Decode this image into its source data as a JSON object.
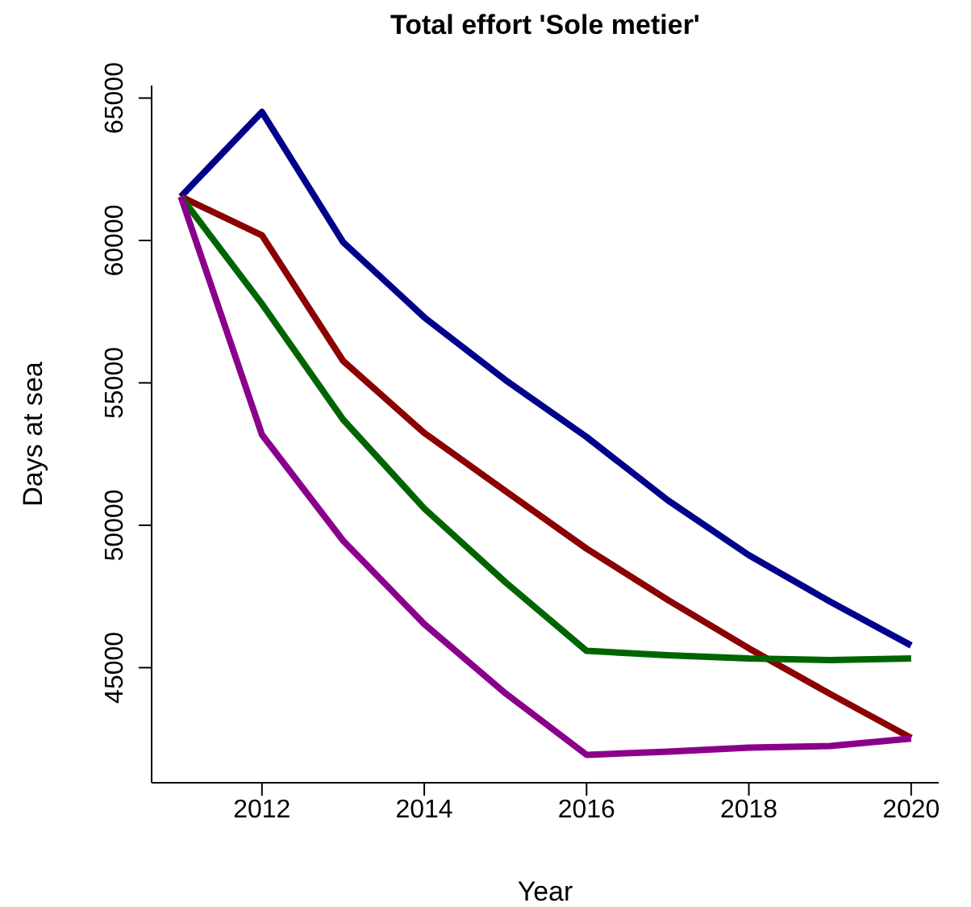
{
  "chart_data": {
    "type": "line",
    "title": "Total effort 'Sole metier'",
    "xlabel": "Year",
    "ylabel": "Days at sea",
    "x": [
      2011,
      2012,
      2013,
      2014,
      2015,
      2016,
      2017,
      2018,
      2019,
      2020
    ],
    "series": [
      {
        "color": "#00008b",
        "values": [
          61540,
          64510,
          59940,
          57300,
          55100,
          53100,
          50880,
          48950,
          47320,
          45780
        ]
      },
      {
        "color": "#8b0000",
        "values": [
          61540,
          60180,
          55770,
          53240,
          51200,
          49180,
          47380,
          45680,
          44080,
          42530
        ]
      },
      {
        "color": "#006400",
        "values": [
          61540,
          57770,
          53710,
          50590,
          48000,
          45590,
          45440,
          45320,
          45270,
          45320
        ]
      },
      {
        "color": "#8b008b",
        "values": [
          61540,
          53180,
          49460,
          46530,
          44100,
          41940,
          42050,
          42190,
          42250,
          42510
        ]
      }
    ],
    "xlim": [
      2010.64,
      2020.34
    ],
    "ylim": [
      40960,
      65440
    ],
    "xticks": [
      2012,
      2014,
      2016,
      2018,
      2020
    ],
    "yticks": [
      45000,
      50000,
      55000,
      60000,
      65000
    ],
    "grid": false,
    "legend": false,
    "marker": "none",
    "line_style": "solid"
  }
}
